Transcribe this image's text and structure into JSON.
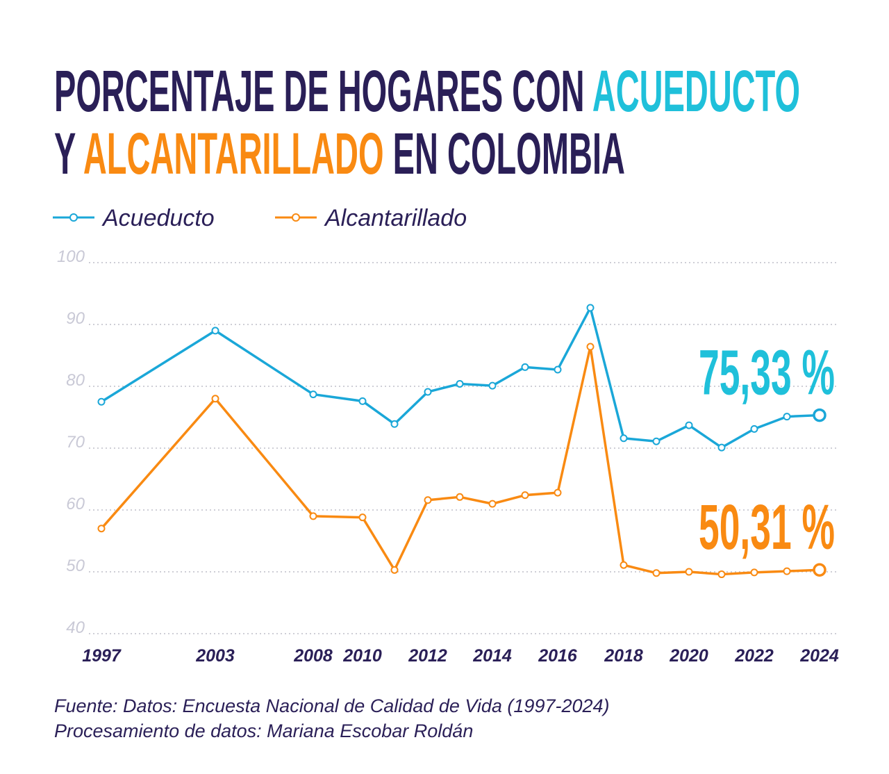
{
  "chart_data": {
    "type": "line",
    "title": [
      [
        {
          "text": "PORCENTAJE DE HOGARES CON ",
          "color": "#2a1f57"
        },
        {
          "text": "ACUEDUCTO",
          "color": "#1fc0da"
        }
      ],
      [
        {
          "text": "Y ",
          "color": "#2a1f57"
        },
        {
          "text": "ALCANTARILLADO",
          "color": "#f98a12"
        },
        {
          "text": " EN COLOMBIA",
          "color": "#2a1f57"
        }
      ]
    ],
    "categories": [
      "1997",
      "2003",
      "2008",
      "2010",
      null,
      "2012",
      null,
      "2014",
      null,
      "2016",
      null,
      "2018",
      null,
      "2020",
      null,
      "2022",
      null,
      "2024"
    ],
    "series": [
      {
        "name": "Acueducto",
        "color": "#1aa7d8",
        "label_color": "#1fc0da",
        "values": [
          77.5,
          89.0,
          78.7,
          77.6,
          73.9,
          79.1,
          80.4,
          80.1,
          83.1,
          82.7,
          92.7,
          71.6,
          71.1,
          73.7,
          70.1,
          73.1,
          75.1,
          75.33
        ],
        "value_labels": [
          null,
          null,
          null,
          null,
          null,
          null,
          null,
          null,
          null,
          null,
          null,
          null,
          null,
          null,
          null,
          null,
          null,
          "75,33 %"
        ]
      },
      {
        "name": "Alcantarillado",
        "color": "#f98a12",
        "label_color": "#f98a12",
        "values": [
          57.0,
          78.0,
          59.0,
          58.8,
          50.3,
          61.6,
          62.1,
          61.0,
          62.4,
          62.8,
          86.4,
          51.1,
          49.8,
          50.0,
          49.6,
          49.9,
          50.1,
          50.31
        ],
        "value_labels": [
          null,
          null,
          null,
          null,
          null,
          null,
          null,
          null,
          null,
          null,
          null,
          null,
          null,
          null,
          null,
          null,
          null,
          "50,31 %"
        ]
      }
    ],
    "ylim": [
      40,
      100
    ],
    "yticks": [
      40,
      50,
      60,
      70,
      80,
      90,
      100
    ],
    "grid": true,
    "source": [
      "Fuente: Datos: Encuesta Nacional de Calidad de Vida (1997-2024)",
      "Procesamiento de datos: Mariana Escobar Roldán"
    ]
  }
}
